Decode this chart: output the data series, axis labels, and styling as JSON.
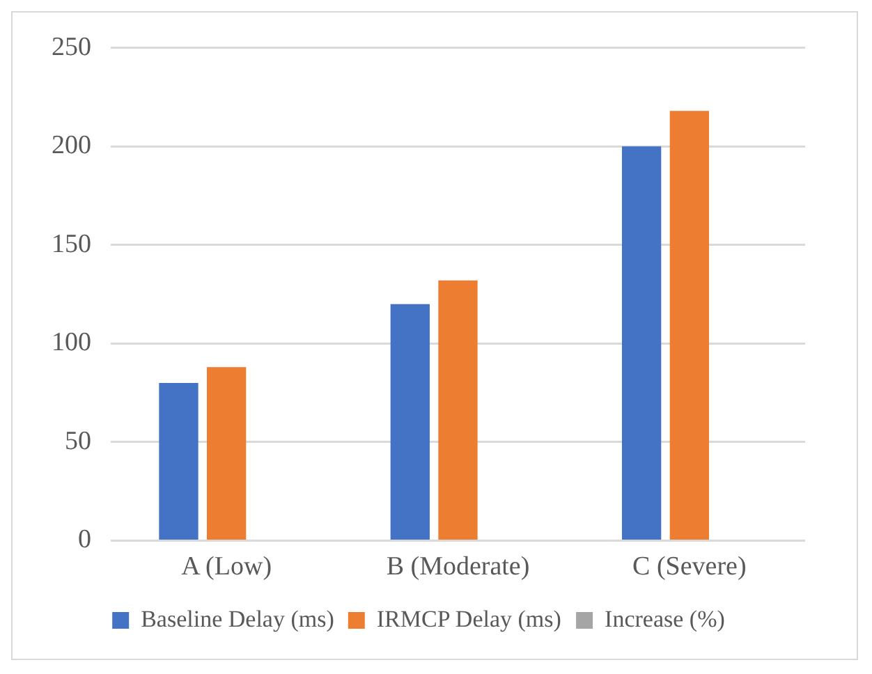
{
  "chart_data": {
    "type": "bar",
    "categories": [
      "A (Low)",
      "B (Moderate)",
      "C (Severe)"
    ],
    "series": [
      {
        "name": "Baseline Delay (ms)",
        "color": "#4472c4",
        "values": [
          80,
          120,
          200
        ]
      },
      {
        "name": "IRMCP Delay (ms)",
        "color": "#ed7d31",
        "values": [
          88,
          132,
          218
        ]
      },
      {
        "name": "Increase (%)",
        "color": "#a5a5a5",
        "values": [
          null,
          null,
          null
        ]
      }
    ],
    "ylim": [
      0,
      250
    ],
    "yticks": [
      0,
      50,
      100,
      150,
      200,
      250
    ],
    "grid": "y",
    "legend": "bottom"
  }
}
